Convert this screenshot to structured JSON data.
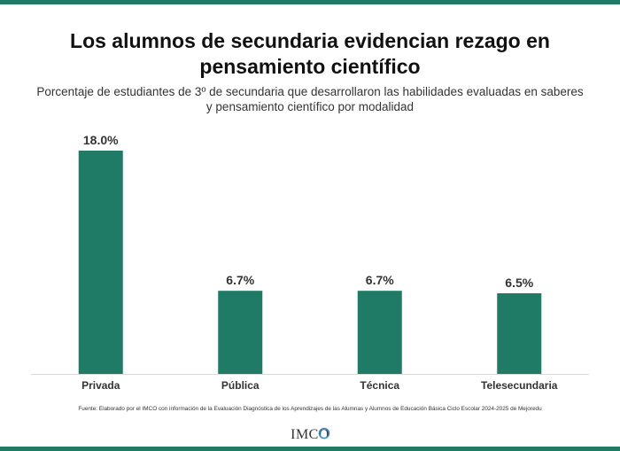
{
  "header": {
    "title": "Los alumnos de secundaria evidencian rezago en pensamiento científico",
    "subtitle": "Porcentaje de estudiantes de 3º de secundaria que desarrollaron las habilidades evaluadas en saberes y pensamiento científico por modalidad"
  },
  "footer": {
    "source": "Fuente: Elaborado por el IMCO con información de la Evaluación Diagnóstica de los Aprendizajes de las Alumnas y Alumnos de Educación Básica Ciclo Escolar 2024-2025 de Mejoredu",
    "logo_text": "IMCO"
  },
  "colors": {
    "bar": "#1f7a66",
    "accent": "#1f7a66",
    "logo_ring": "#3a8fc4"
  },
  "chart_data": {
    "type": "bar",
    "categories": [
      "Privada",
      "Pública",
      "Técnica",
      "Telesecundaria"
    ],
    "values": [
      18.0,
      6.7,
      6.7,
      6.5
    ],
    "data_labels": [
      "18.0%",
      "6.7%",
      "6.7%",
      "6.5%"
    ],
    "title": "Los alumnos de secundaria evidencian rezago en pensamiento científico",
    "subtitle": "Porcentaje de estudiantes de 3º de secundaria que desarrollaron las habilidades evaluadas en saberes y pensamiento científico por modalidad",
    "xlabel": "",
    "ylabel": "",
    "ylim": [
      0,
      18.0
    ],
    "grid": false,
    "legend": "none"
  }
}
